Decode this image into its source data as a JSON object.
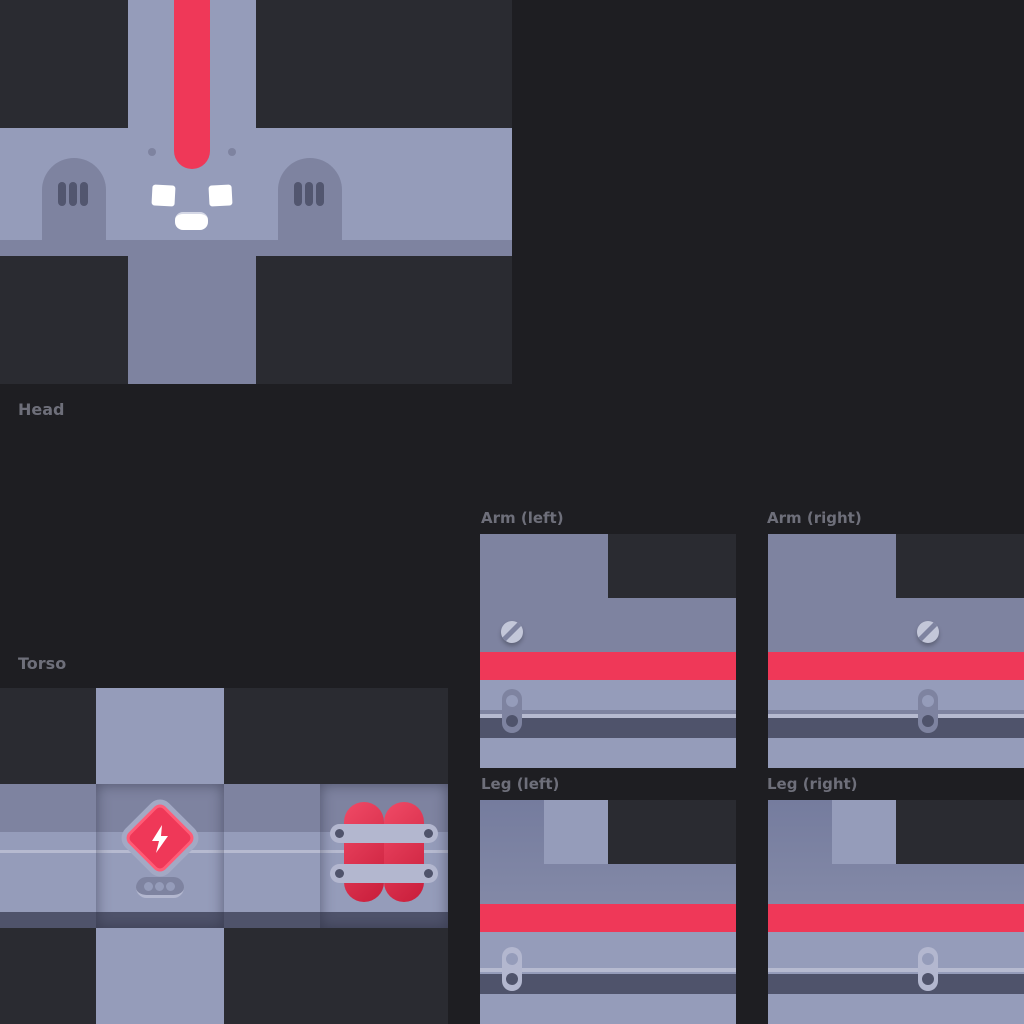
{
  "labels": {
    "head": "Head",
    "torso": "Torso",
    "arm_left": "Arm (left)",
    "arm_right": "Arm (right)",
    "leg_left": "Leg (left)",
    "leg_right": "Leg (right)"
  },
  "colors": {
    "background": "#1e1e22",
    "empty_region": "#2a2b31",
    "body_light": "#959cba",
    "body_mid": "#7e83a0",
    "body_dark": "#4f536b",
    "accent_red": "#ef3858",
    "label_text": "#6e6f7a"
  },
  "icons": {
    "torso_badge": "lightning-bolt-icon",
    "torso_back": "dynamite-icon",
    "arm_joint": "screw-icon",
    "limb_joint": "link-icon"
  }
}
